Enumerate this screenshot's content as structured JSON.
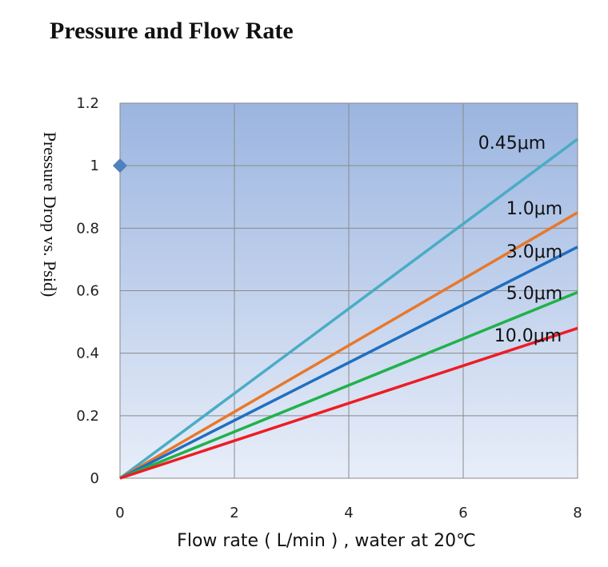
{
  "chart_data": {
    "type": "line",
    "title": "Pressure and Flow Rate",
    "xlabel": "Flow rate ( L/min ) , water at 20℃",
    "ylabel": "Pressure Drop vs. Psid)",
    "xlim": [
      0,
      8
    ],
    "ylim": [
      0,
      1.2
    ],
    "x_ticks": [
      "0",
      "2",
      "4",
      "6",
      "8"
    ],
    "y_ticks": [
      "0",
      "0.2",
      "0.4",
      "0.6",
      "0.8",
      "1",
      "1.2"
    ],
    "grid": true,
    "legend": "inline labels at right end of lines",
    "series": [
      {
        "name": "0.45μm",
        "x": [
          0,
          8
        ],
        "y": [
          0,
          1.085
        ],
        "color": "#4aacc5"
      },
      {
        "name": "1.0μm",
        "x": [
          0,
          8
        ],
        "y": [
          0,
          0.85
        ],
        "color": "#e8782a"
      },
      {
        "name": "3.0μm",
        "x": [
          0,
          8
        ],
        "y": [
          0,
          0.74
        ],
        "color": "#1f6fc1"
      },
      {
        "name": "5.0μm",
        "x": [
          0,
          8
        ],
        "y": [
          0,
          0.595
        ],
        "color": "#1fb24a"
      },
      {
        "name": "10.0μm",
        "x": [
          0,
          8
        ],
        "y": [
          0,
          0.48
        ],
        "color": "#ee1c24"
      }
    ],
    "markers": [
      {
        "x": 0,
        "y": 1,
        "shape": "diamond",
        "color": "#4f81bd"
      }
    ],
    "plot_background": {
      "top": "#9bb5e0",
      "bottom": "#e8eef9"
    }
  }
}
